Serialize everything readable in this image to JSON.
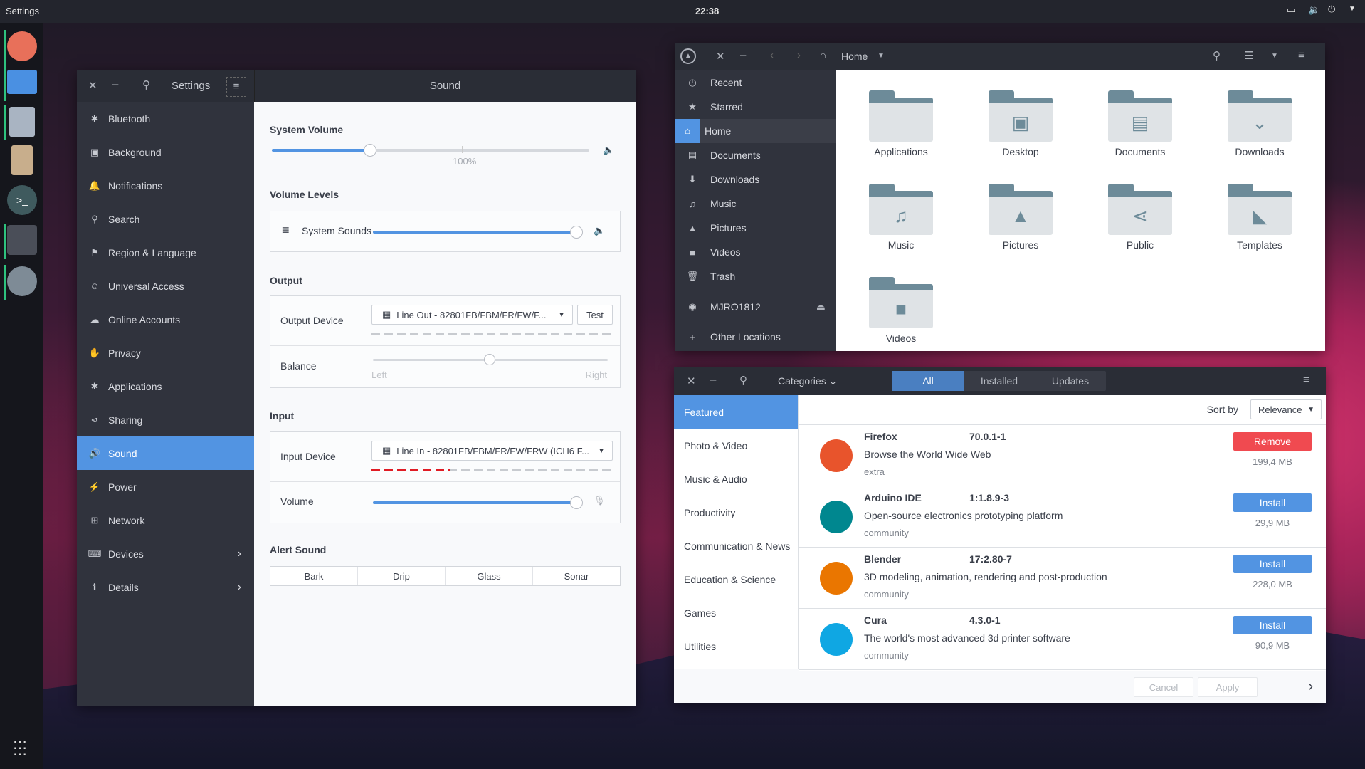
{
  "topbar": {
    "app_name": "Settings",
    "clock": "22:38"
  },
  "colors": {
    "accent": "#5294e2",
    "remove": "#f04a50",
    "dock_indicator": "#2ec27e"
  },
  "dock": {
    "items": [
      "firefox-icon",
      "files-icon",
      "downloader-icon",
      "text-editor-icon",
      "terminal-icon",
      "settings-icon",
      "gnome-icon"
    ],
    "apps_grid": "apps-grid-icon"
  },
  "settings": {
    "title": "Settings",
    "panel_title": "Sound",
    "sidebar": [
      {
        "label": "Bluetooth",
        "icon": "✱"
      },
      {
        "label": "Background",
        "icon": "▣"
      },
      {
        "label": "Notifications",
        "icon": "🔔"
      },
      {
        "label": "Search",
        "icon": "⚲"
      },
      {
        "label": "Region & Language",
        "icon": "⚑"
      },
      {
        "label": "Universal Access",
        "icon": "☺"
      },
      {
        "label": "Online Accounts",
        "icon": "☁"
      },
      {
        "label": "Privacy",
        "icon": "✋"
      },
      {
        "label": "Applications",
        "icon": "✱"
      },
      {
        "label": "Sharing",
        "icon": "⋖"
      },
      {
        "label": "Sound",
        "icon": "🔊",
        "selected": true
      },
      {
        "label": "Power",
        "icon": "⚡"
      },
      {
        "label": "Network",
        "icon": "⊞"
      },
      {
        "label": "Devices",
        "icon": "⌨",
        "chevron": true
      },
      {
        "label": "Details",
        "icon": "ℹ",
        "chevron": true
      }
    ],
    "system_volume": {
      "label": "System Volume",
      "value_percent": 31,
      "mark": "100%"
    },
    "volume_levels": {
      "label": "Volume Levels",
      "system_sounds": "System Sounds",
      "value_percent": 100
    },
    "output": {
      "label": "Output",
      "device_label": "Output Device",
      "device": "Line Out - 82801FB/FBM/FR/FW/F...",
      "test": "Test",
      "balance_label": "Balance",
      "balance_value": 0.5,
      "left": "Left",
      "right": "Right"
    },
    "input": {
      "label": "Input",
      "device_label": "Input Device",
      "device": "Line In - 82801FB/FBM/FR/FW/FRW (ICH6 F...",
      "volume_label": "Volume",
      "volume_percent": 100,
      "level_segments_active": 6
    },
    "alert": {
      "label": "Alert Sound",
      "options": [
        "Bark",
        "Drip",
        "Glass",
        "Sonar"
      ]
    }
  },
  "files": {
    "location": "Home",
    "sidebar": [
      {
        "label": "Recent",
        "icon": "◷"
      },
      {
        "label": "Starred",
        "icon": "★"
      },
      {
        "label": "Home",
        "icon": "⌂",
        "selected": true
      },
      {
        "label": "Documents",
        "icon": "▤"
      },
      {
        "label": "Downloads",
        "icon": "⬇"
      },
      {
        "label": "Music",
        "icon": "♫"
      },
      {
        "label": "Pictures",
        "icon": "▲"
      },
      {
        "label": "Videos",
        "icon": "■"
      },
      {
        "label": "Trash",
        "icon": "🗑"
      },
      {
        "label": "MJRO1812",
        "icon": "◉",
        "eject": true
      },
      {
        "label": "Other Locations",
        "icon": "+"
      }
    ],
    "folders": [
      {
        "name": "Applications",
        "sym": ""
      },
      {
        "name": "Desktop",
        "sym": "▣"
      },
      {
        "name": "Documents",
        "sym": "▤"
      },
      {
        "name": "Downloads",
        "sym": "⌄"
      },
      {
        "name": "Music",
        "sym": "♫"
      },
      {
        "name": "Pictures",
        "sym": "▲"
      },
      {
        "name": "Public",
        "sym": "⋖"
      },
      {
        "name": "Templates",
        "sym": "◣"
      },
      {
        "name": "Videos",
        "sym": "■"
      }
    ]
  },
  "software": {
    "categories_label": "Categories",
    "tabs": [
      {
        "label": "All",
        "active": true
      },
      {
        "label": "Installed"
      },
      {
        "label": "Updates"
      }
    ],
    "categories": [
      {
        "label": "Featured",
        "selected": true
      },
      {
        "label": "Photo & Video"
      },
      {
        "label": "Music & Audio"
      },
      {
        "label": "Productivity"
      },
      {
        "label": "Communication & News"
      },
      {
        "label": "Education & Science"
      },
      {
        "label": "Games"
      },
      {
        "label": "Utilities"
      }
    ],
    "sort_label": "Sort by",
    "sort_value": "Relevance",
    "apps": [
      {
        "name": "Firefox",
        "version": "70.0.1-1",
        "description": "Browse the World Wide Web",
        "repo": "extra",
        "action": "Remove",
        "size": "199,4 MB",
        "logo_color": "#e8542c"
      },
      {
        "name": "Arduino IDE",
        "version": "1:1.8.9-3",
        "description": "Open-source electronics prototyping platform",
        "repo": "community",
        "action": "Install",
        "size": "29,9 MB",
        "logo_color": "#00878f"
      },
      {
        "name": "Blender",
        "version": "17:2.80-7",
        "description": "3D modeling, animation, rendering and post-production",
        "repo": "community",
        "action": "Install",
        "size": "228,0 MB",
        "logo_color": "#ea7600"
      },
      {
        "name": "Cura",
        "version": "4.3.0-1",
        "description": "The world's most advanced 3d printer software",
        "repo": "community",
        "action": "Install",
        "size": "90,9 MB",
        "logo_color": "#0fa7e3"
      }
    ],
    "cancel": "Cancel",
    "apply": "Apply"
  }
}
